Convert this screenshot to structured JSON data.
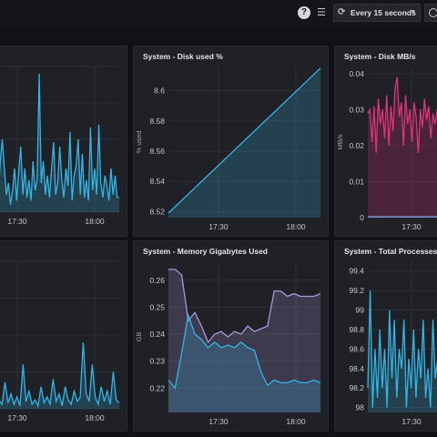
{
  "toolbar": {
    "help_icon": "help-icon",
    "list_icon": "list-icon",
    "refresh_label": "Every 15 seconds",
    "refresh_icon": "refresh-icon",
    "dropdown_icon": "chevron-down-icon",
    "time_icon": "clock-icon"
  },
  "colors": {
    "blue": "#33b5e5",
    "violet": "#a897d9",
    "pink": "#e0337a"
  },
  "panels": [
    {
      "id": "p1",
      "title": "",
      "chart_data": {
        "type": "area",
        "x_ticks": [
          "17:30",
          "18:00"
        ],
        "y_ticks": [],
        "ylabel": "",
        "series": [
          {
            "values": [
              0.05,
              0.08,
              0.25,
              0.05,
              0.1,
              0.35,
              0.5,
              0.3,
              0.12,
              0.2,
              0.05,
              0.15,
              0.3,
              0.08,
              0.28,
              0.45,
              0.12,
              0.3,
              0.1,
              0.22,
              0.08,
              0.35,
              0.15,
              0.22,
              0.95,
              0.2,
              0.35,
              0.12,
              0.25,
              0.1,
              0.3,
              0.48,
              0.12,
              0.2,
              0.45,
              0.22,
              0.1,
              0.3,
              0.18,
              0.55,
              0.08,
              0.25,
              0.32,
              0.5,
              0.12,
              0.4,
              0.1,
              0.22,
              0.08,
              0.58,
              0.15,
              0.3,
              0.12,
              0.6,
              0.2,
              0.1,
              0.25,
              0.18,
              0.08,
              0.3,
              0.12,
              0.25,
              0.1,
              0.1
            ]
          }
        ]
      }
    },
    {
      "id": "p2",
      "title": "System - Disk used %",
      "chart_data": {
        "type": "area",
        "x_ticks": [
          "17:30",
          "18:00"
        ],
        "y_ticks": [
          "8.6",
          "8.58",
          "8.56",
          "8.54",
          "8.52"
        ],
        "ylabel": "% used",
        "ylim": [
          8.516,
          8.616
        ],
        "series": [
          {
            "values": [
              8.519,
              8.6149
            ]
          }
        ]
      }
    },
    {
      "id": "p3",
      "title": "System - Disk MB/s",
      "chart_data": {
        "type": "area",
        "x_ticks": [
          "17:30"
        ],
        "y_ticks": [
          "0.04",
          "0.03",
          "0.02",
          "0.01",
          "0"
        ],
        "ylabel": "MB/s",
        "ylim": [
          0,
          0.042
        ],
        "series": [
          {
            "values": [
              0.029,
              0.03,
              0.021,
              0.031,
              0.018,
              0.033,
              0.026,
              0.03,
              0.022,
              0.034,
              0.02,
              0.031,
              0.024,
              0.036,
              0.039,
              0.028,
              0.032,
              0.02,
              0.034,
              0.026,
              0.03,
              0.021,
              0.032,
              0.028,
              0.018,
              0.03,
              0.025,
              0.033,
              0.027,
              0.031,
              0.022,
              0.029,
              0.026,
              0.03,
              0.024,
              0.032,
              0.026,
              0.029,
              0.021,
              0.028
            ]
          },
          {
            "values": [
              0.0002,
              0.0002
            ]
          }
        ]
      }
    },
    {
      "id": "p4",
      "title": "",
      "chart_data": {
        "type": "area",
        "x_ticks": [
          "17:30",
          "18:00"
        ],
        "y_ticks": [],
        "ylabel": "",
        "series": [
          {
            "values": [
              0.05,
              0.12,
              0.02,
              0.06,
              0.03,
              0.18,
              0.04,
              0.1,
              0.03,
              0.08,
              0.02,
              0.3,
              0.05,
              0.12,
              0.03,
              0.06,
              0.02,
              0.15,
              0.04,
              0.08,
              0.03,
              0.2,
              0.05,
              0.1,
              0.02,
              0.15,
              0.06,
              0.03,
              0.12,
              0.05,
              0.08,
              0.45,
              0.1,
              0.05,
              0.3,
              0.08,
              0.03,
              0.15,
              0.05,
              0.12,
              0.03,
              0.25,
              0.06,
              0.04
            ]
          }
        ]
      }
    },
    {
      "id": "p5",
      "title": "System - Memory Gigabytes Used",
      "chart_data": {
        "type": "area",
        "x_ticks": [
          "17:30",
          "18:00"
        ],
        "y_ticks": [
          "0.26",
          "0.25",
          "0.24",
          "0.23",
          "0.22"
        ],
        "ylabel": "GB",
        "ylim": [
          0.211,
          0.267
        ],
        "series": [
          {
            "values": [
              0.264,
              0.264,
              0.262,
              0.245,
              0.248,
              0.243,
              0.237,
              0.24,
              0.241,
              0.239,
              0.241,
              0.24,
              0.243,
              0.241,
              0.242,
              0.243,
              0.256,
              0.256,
              0.254,
              0.255,
              0.254,
              0.254,
              0.254,
              0.255
            ]
          },
          {
            "values": [
              0.223,
              0.22,
              0.233,
              0.247,
              0.24,
              0.238,
              0.235,
              0.237,
              0.235,
              0.236,
              0.235,
              0.237,
              0.235,
              0.234,
              0.226,
              0.221,
              0.223,
              0.222,
              0.222,
              0.223,
              0.222,
              0.222,
              0.223,
              0.222
            ]
          }
        ]
      }
    },
    {
      "id": "p6",
      "title": "System - Total Processes",
      "chart_data": {
        "type": "area",
        "x_ticks": [
          "17:30"
        ],
        "y_ticks": [
          "99.4",
          "99.2",
          "99",
          "98.8",
          "98.6",
          "98.4",
          "98.2",
          "98"
        ],
        "ylabel": "",
        "ylim": [
          97.95,
          99.5
        ],
        "series": [
          {
            "values": [
              98.2,
              99.2,
              98.0,
              98.6,
              98.1,
              98.8,
              98.2,
              98.6,
              98.0,
              99.0,
              98.3,
              98.9,
              98.1,
              98.6,
              98.4,
              98.9,
              98.0,
              98.5,
              98.2,
              98.8,
              98.1,
              98.6,
              98.3,
              98.9,
              98.1,
              98.4,
              98.0,
              98.9,
              98.3,
              98.5,
              98.1,
              98.7,
              98.0,
              99.4,
              99.4
            ]
          }
        ]
      }
    }
  ]
}
